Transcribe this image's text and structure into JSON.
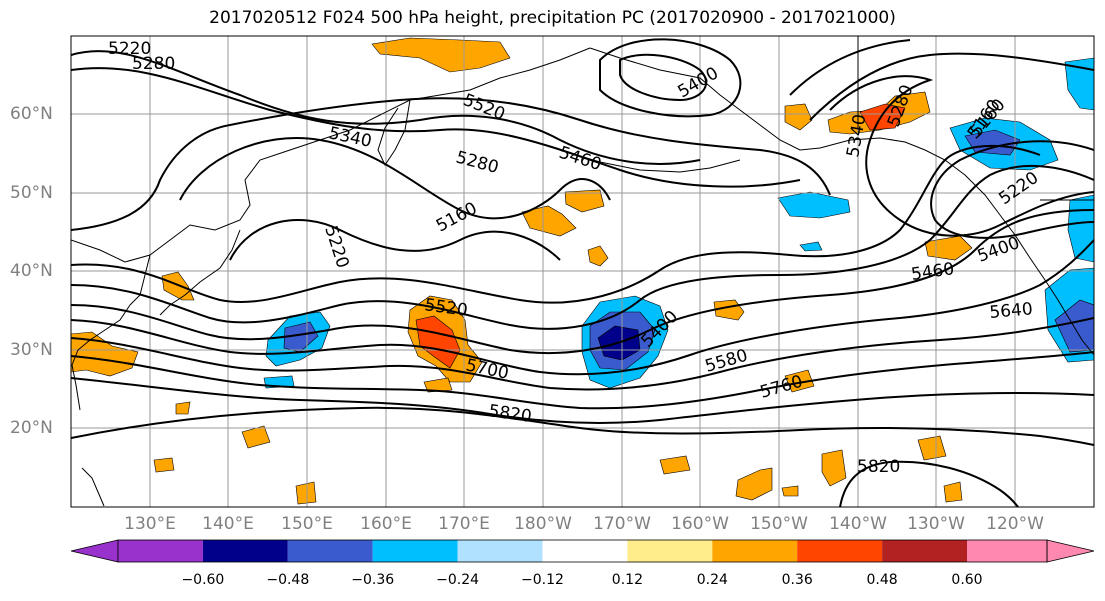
{
  "title": "2017020512 F024 500 hPa height, precipitation PC (2017020900 - 2017021000)",
  "lat_labels": [
    "60°N",
    "50°N",
    "40°N",
    "30°N",
    "20°N"
  ],
  "lon_labels": [
    "130°E",
    "140°E",
    "150°E",
    "160°E",
    "170°E",
    "180°W",
    "170°W",
    "160°W",
    "150°W",
    "140°W",
    "130°W",
    "120°W"
  ],
  "contour_labels": [
    "5220",
    "5280",
    "5520",
    "5400",
    "5340",
    "5280",
    "5460",
    "5160",
    "5220",
    "5160",
    "5340",
    "5280",
    "5160",
    "5220",
    "5400",
    "5460",
    "5520",
    "5400",
    "5640",
    "5580",
    "5700",
    "5760",
    "5820",
    "5820"
  ],
  "colorbar": {
    "colors": [
      "#9932cc",
      "#00008b",
      "#3a5bcd",
      "#00bfff",
      "#b0e2ff",
      "#ffffff",
      "#ffec8b",
      "#ffa500",
      "#ff4500",
      "#b22222",
      "#ff88b0"
    ],
    "tick_labels": [
      "−0.60",
      "−0.48",
      "−0.36",
      "−0.24",
      "−0.12",
      "0.12",
      "0.24",
      "0.36",
      "0.48",
      "0.60"
    ]
  }
}
